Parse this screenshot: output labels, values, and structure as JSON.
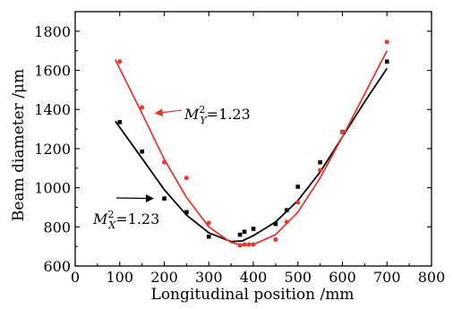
{
  "chart_data": {
    "type": "scatter",
    "xlabel": "Longitudinal position /mm",
    "ylabel": "Beam diameter /μm",
    "xlim": [
      0,
      800
    ],
    "ylim": [
      600,
      1900
    ],
    "xticks": [
      0,
      100,
      200,
      300,
      400,
      500,
      600,
      700,
      800
    ],
    "yticks": [
      600,
      800,
      1000,
      1200,
      1400,
      1600,
      1800
    ],
    "grid": false,
    "legend": "none",
    "series": [
      {
        "key": "x",
        "color": "#000000",
        "marker": "square",
        "points": [
          [
            100,
            1335
          ],
          [
            150,
            1185
          ],
          [
            200,
            945
          ],
          [
            250,
            875
          ],
          [
            300,
            750
          ],
          [
            370,
            760
          ],
          [
            380,
            775
          ],
          [
            400,
            790
          ],
          [
            450,
            815
          ],
          [
            475,
            885
          ],
          [
            500,
            1005
          ],
          [
            550,
            1130
          ],
          [
            600,
            1285
          ],
          [
            700,
            1645
          ]
        ],
        "fit": [
          [
            90,
            1340
          ],
          [
            150,
            1150
          ],
          [
            200,
            990
          ],
          [
            250,
            860
          ],
          [
            300,
            770
          ],
          [
            350,
            725
          ],
          [
            375,
            728
          ],
          [
            400,
            755
          ],
          [
            450,
            825
          ],
          [
            500,
            935
          ],
          [
            550,
            1080
          ],
          [
            600,
            1260
          ],
          [
            650,
            1440
          ],
          [
            700,
            1610
          ]
        ]
      },
      {
        "key": "y",
        "color": "#e8382c",
        "marker": "circle",
        "points": [
          [
            100,
            1645
          ],
          [
            150,
            1410
          ],
          [
            200,
            1130
          ],
          [
            250,
            1050
          ],
          [
            300,
            820
          ],
          [
            370,
            705
          ],
          [
            380,
            710
          ],
          [
            390,
            710
          ],
          [
            400,
            710
          ],
          [
            450,
            735
          ],
          [
            475,
            825
          ],
          [
            500,
            925
          ],
          [
            550,
            1090
          ],
          [
            600,
            1285
          ],
          [
            700,
            1745
          ]
        ],
        "fit": [
          [
            90,
            1655
          ],
          [
            150,
            1380
          ],
          [
            200,
            1145
          ],
          [
            250,
            950
          ],
          [
            300,
            800
          ],
          [
            350,
            720
          ],
          [
            380,
            705
          ],
          [
            400,
            710
          ],
          [
            450,
            760
          ],
          [
            500,
            875
          ],
          [
            550,
            1050
          ],
          [
            600,
            1260
          ],
          [
            650,
            1480
          ],
          [
            700,
            1700
          ]
        ]
      }
    ],
    "annotations": [
      {
        "series": "y",
        "base": "M",
        "sup": "2",
        "sub": "Y",
        "value": "=1.23",
        "arrow_to": [
          180,
          1380
        ]
      },
      {
        "series": "x",
        "base": "M",
        "sup": "2",
        "sub": "X",
        "value": "=1.23",
        "arrow_to": [
          175,
          945
        ]
      }
    ]
  }
}
